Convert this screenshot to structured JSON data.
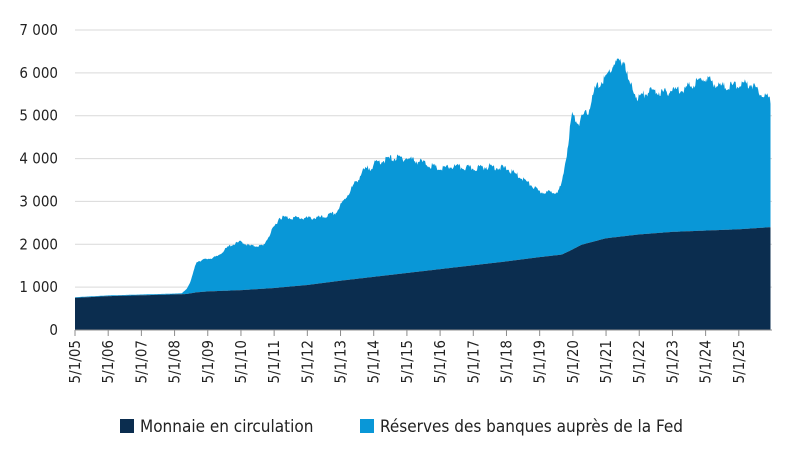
{
  "chart_data": {
    "type": "area",
    "stacked": true,
    "title": "",
    "xlabel": "",
    "ylabel": "",
    "ylim": [
      0,
      7000
    ],
    "yticks": [
      0,
      1000,
      2000,
      3000,
      4000,
      5000,
      6000,
      7000
    ],
    "ytick_labels": [
      "0",
      "1 000",
      "2 000",
      "3 000",
      "4 000",
      "5 000",
      "6 000",
      "7 000"
    ],
    "xlim": [
      2005.333,
      2026.333
    ],
    "xtick_labels": [
      "5/1/05",
      "5/1/06",
      "5/1/07",
      "5/1/08",
      "5/1/09",
      "5/1/10",
      "5/1/11",
      "5/1/12",
      "5/1/13",
      "5/1/14",
      "5/1/15",
      "5/1/16",
      "5/1/17",
      "5/1/18",
      "5/1/19",
      "5/1/20",
      "5/1/21",
      "5/1/22",
      "5/1/23",
      "5/1/24",
      "5/1/25"
    ],
    "grid": "horizontal",
    "legend_position": "bottom",
    "series": [
      {
        "name": "Monnaie en circulation",
        "color": "#0b2d4f",
        "x": [
          2005.33,
          2006.33,
          2007.33,
          2008.33,
          2008.7,
          2009.0,
          2009.33,
          2010.33,
          2011.33,
          2012.33,
          2013.33,
          2014.33,
          2015.33,
          2016.33,
          2017.33,
          2018.33,
          2019.33,
          2020.0,
          2020.25,
          2020.6,
          2021.33,
          2022.33,
          2023.33,
          2024.33,
          2025.33,
          2026.3
        ],
        "values": [
          750,
          790,
          810,
          830,
          840,
          880,
          900,
          930,
          980,
          1050,
          1150,
          1240,
          1330,
          1420,
          1510,
          1600,
          1700,
          1760,
          1850,
          1990,
          2140,
          2230,
          2290,
          2320,
          2350,
          2400
        ]
      },
      {
        "name": "Réserves des banques auprès de la Fed",
        "color": "#0997d7",
        "x": [
          2005.33,
          2008.55,
          2008.7,
          2008.8,
          2009.0,
          2009.33,
          2009.6,
          2010.0,
          2010.33,
          2010.6,
          2011.0,
          2011.2,
          2011.5,
          2012.0,
          2012.33,
          2012.8,
          2013.2,
          2013.6,
          2014.0,
          2014.5,
          2014.9,
          2015.33,
          2015.8,
          2016.33,
          2016.7,
          2017.33,
          2017.8,
          2018.33,
          2018.8,
          2019.33,
          2019.7,
          2019.9,
          2020.0,
          2020.15,
          2020.3,
          2020.5,
          2020.8,
          2021.0,
          2021.33,
          2021.6,
          2021.9,
          2022.0,
          2022.3,
          2022.6,
          2022.9,
          2023.1,
          2023.33,
          2023.7,
          2024.0,
          2024.33,
          2024.7,
          2025.0,
          2025.33,
          2025.7,
          2026.0,
          2026.3
        ],
        "values": [
          15,
          20,
          120,
          250,
          720,
          760,
          800,
          1050,
          1130,
          1020,
          1000,
          1250,
          1640,
          1590,
          1560,
          1530,
          1600,
          2050,
          2480,
          2680,
          2720,
          2680,
          2540,
          2330,
          2360,
          2260,
          2270,
          2170,
          1900,
          1520,
          1480,
          1500,
          1640,
          2300,
          3150,
          2880,
          3080,
          3550,
          3760,
          4070,
          4080,
          3600,
          3180,
          3320,
          3300,
          3260,
          3310,
          3330,
          3450,
          3570,
          3380,
          3340,
          3380,
          3380,
          3160,
          2960
        ]
      }
    ]
  }
}
